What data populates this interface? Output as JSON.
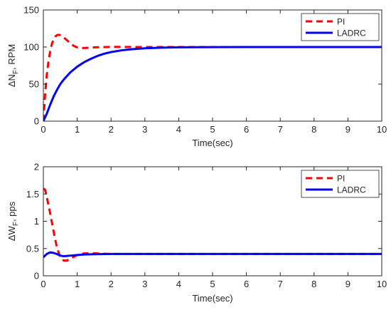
{
  "chart_data": [
    {
      "type": "line",
      "xlabel": "Time(sec)",
      "ylabel": "ΔN F, RPM",
      "ylabel_main": "ΔN",
      "ylabel_sub": "F",
      "ylabel_tail": ", RPM",
      "xlim": [
        0,
        10
      ],
      "ylim": [
        0,
        150
      ],
      "xticks": [
        0,
        1,
        2,
        3,
        4,
        5,
        6,
        7,
        8,
        9,
        10
      ],
      "yticks": [
        0,
        50,
        100,
        150
      ],
      "legend_position": "top-right",
      "series": [
        {
          "name": "PI",
          "color": "#ff0000",
          "style": "dashed",
          "x": [
            0,
            0.05,
            0.1,
            0.15,
            0.2,
            0.25,
            0.3,
            0.35,
            0.4,
            0.45,
            0.5,
            0.55,
            0.6,
            0.7,
            0.8,
            0.9,
            1.0,
            1.1,
            1.2,
            1.4,
            1.6,
            2.0,
            2.5,
            3.0,
            4.0,
            5.0,
            7.0,
            10.0
          ],
          "y": [
            0,
            35,
            62,
            80,
            94,
            104,
            110,
            114,
            116,
            116.5,
            116,
            115,
            113,
            109,
            105,
            101.5,
            99.5,
            98.8,
            98.7,
            99.2,
            99.7,
            100.2,
            100.1,
            100,
            100,
            100,
            100,
            100
          ]
        },
        {
          "name": "LADRC",
          "color": "#0000ff",
          "style": "solid",
          "x": [
            0,
            0.1,
            0.2,
            0.3,
            0.4,
            0.5,
            0.6,
            0.8,
            1.0,
            1.2,
            1.4,
            1.6,
            1.8,
            2.0,
            2.3,
            2.6,
            3.0,
            3.5,
            4.0,
            4.5,
            5.0,
            6.0,
            7.0,
            8.0,
            10.0
          ],
          "y": [
            0,
            10,
            22,
            33,
            42,
            50,
            56,
            66,
            73.5,
            79.5,
            84,
            88,
            91,
            93.2,
            95.5,
            97,
            98.3,
            99.2,
            99.6,
            99.8,
            99.9,
            100,
            100,
            100,
            100
          ]
        }
      ]
    },
    {
      "type": "line",
      "xlabel": "Time(sec)",
      "ylabel": "ΔW F, pps",
      "ylabel_main": "ΔW",
      "ylabel_sub": "F",
      "ylabel_tail": ", pps",
      "xlim": [
        0,
        10
      ],
      "ylim": [
        0,
        2
      ],
      "xticks": [
        0,
        1,
        2,
        3,
        4,
        5,
        6,
        7,
        8,
        9,
        10
      ],
      "yticks": [
        0,
        0.5,
        1,
        1.5,
        2
      ],
      "ytick_labels": [
        "0",
        "0.5",
        "1",
        "1.5",
        "2"
      ],
      "legend_position": "top-right",
      "series": [
        {
          "name": "PI",
          "color": "#ff0000",
          "style": "dashed",
          "x": [
            0,
            0.05,
            0.1,
            0.2,
            0.3,
            0.4,
            0.5,
            0.6,
            0.7,
            0.8,
            0.9,
            1.0,
            1.2,
            1.4,
            1.6,
            2.0,
            3.0,
            5.0,
            10.0
          ],
          "y": [
            1.6,
            1.58,
            1.45,
            1.15,
            0.82,
            0.52,
            0.34,
            0.28,
            0.28,
            0.31,
            0.35,
            0.38,
            0.41,
            0.415,
            0.41,
            0.4,
            0.4,
            0.4,
            0.4
          ]
        },
        {
          "name": "LADRC",
          "color": "#0000ff",
          "style": "solid",
          "x": [
            0,
            0.1,
            0.2,
            0.3,
            0.4,
            0.5,
            0.6,
            0.7,
            0.8,
            1.0,
            1.2,
            1.5,
            2.0,
            3.0,
            5.0,
            10.0
          ],
          "y": [
            0.34,
            0.4,
            0.43,
            0.42,
            0.4,
            0.37,
            0.36,
            0.365,
            0.37,
            0.38,
            0.39,
            0.395,
            0.4,
            0.4,
            0.4,
            0.4
          ]
        }
      ]
    }
  ]
}
